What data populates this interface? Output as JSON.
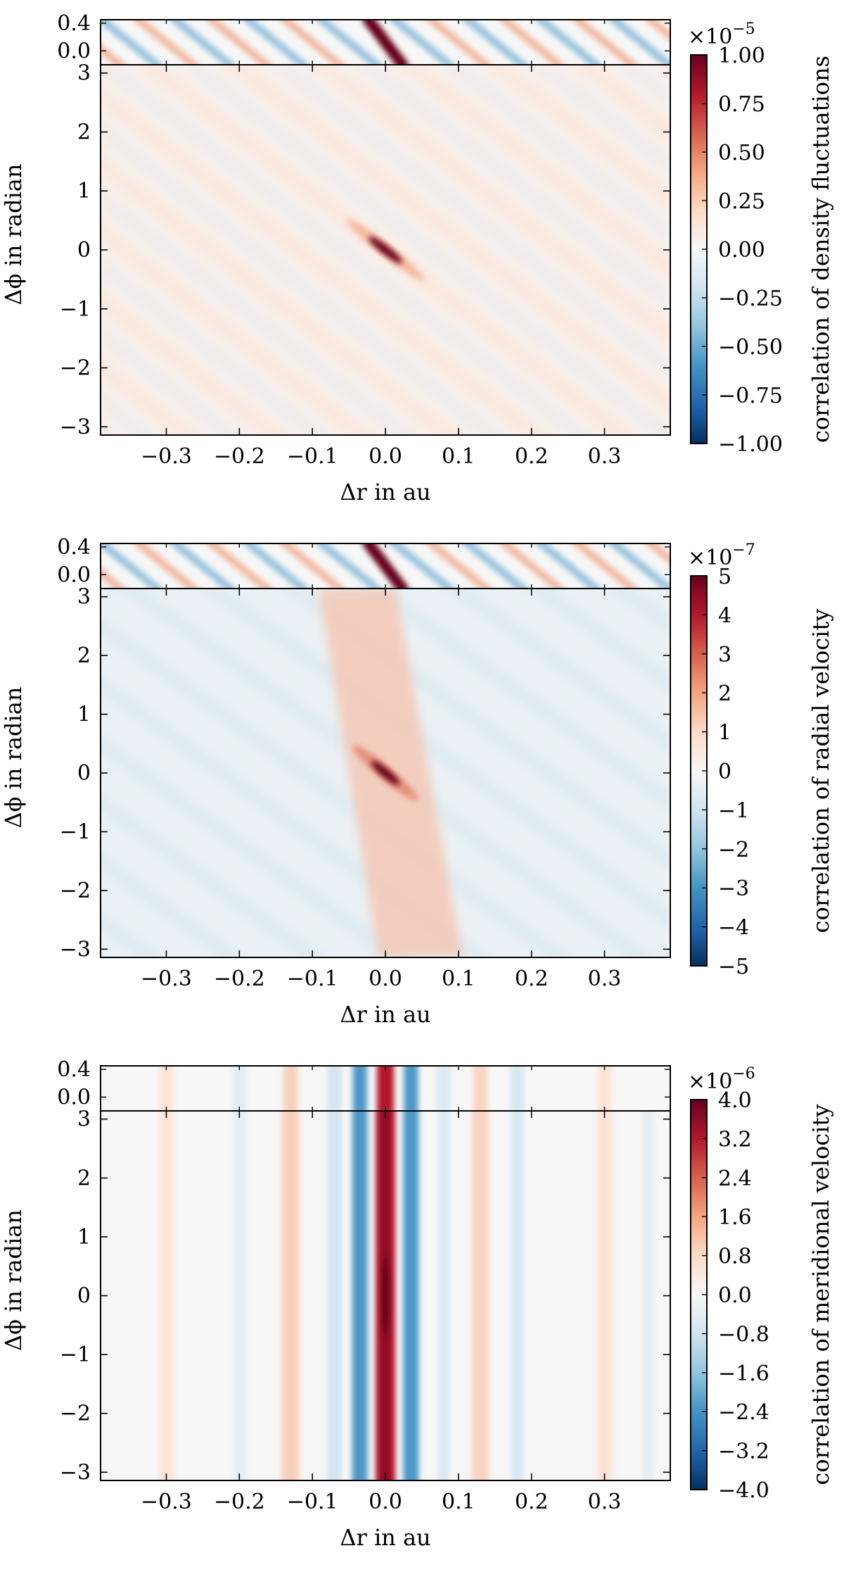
{
  "chart_data": [
    {
      "type": "heatmap",
      "panel": "density",
      "xlabel": "Δr in au",
      "ylabel": "Δϕ in radian",
      "xlim": [
        -0.39,
        0.39
      ],
      "ylim": [
        -3.14,
        3.14
      ],
      "inset_ylim": [
        -0.2,
        0.45
      ],
      "xticks": [
        "−0.3",
        "−0.2",
        "−0.1",
        "0.0",
        "0.1",
        "0.2",
        "0.3"
      ],
      "xtick_values": [
        -0.3,
        -0.2,
        -0.1,
        0.0,
        0.1,
        0.2,
        0.3
      ],
      "yticks": [
        "−3",
        "−2",
        "−1",
        "0",
        "1",
        "2",
        "3"
      ],
      "ytick_values": [
        -3,
        -2,
        -1,
        0,
        1,
        2,
        3
      ],
      "inset_yticks": [
        "0.4",
        "0.0"
      ],
      "inset_ytick_values": [
        0.4,
        0.0
      ],
      "colorbar": {
        "label": "correlation of density fluctuations",
        "multiplier_base": "×10",
        "multiplier_exp": "−5",
        "vmin": -1.0,
        "vmax": 1.0,
        "tick_values": [
          -1.0,
          -0.75,
          -0.5,
          -0.25,
          0.0,
          0.25,
          0.5,
          0.75,
          1.0
        ],
        "tick_labels": [
          "−1.00",
          "−0.75",
          "−0.50",
          "−0.25",
          "0.00",
          "0.25",
          "0.50",
          "0.75",
          "1.00"
        ]
      }
    },
    {
      "type": "heatmap",
      "panel": "radial",
      "xlabel": "Δr in au",
      "ylabel": "Δϕ in radian",
      "xlim": [
        -0.39,
        0.39
      ],
      "ylim": [
        -3.14,
        3.14
      ],
      "inset_ylim": [
        -0.2,
        0.45
      ],
      "xticks": [
        "−0.3",
        "−0.2",
        "−0.1",
        "0.0",
        "0.1",
        "0.2",
        "0.3"
      ],
      "xtick_values": [
        -0.3,
        -0.2,
        -0.1,
        0.0,
        0.1,
        0.2,
        0.3
      ],
      "yticks": [
        "−3",
        "−2",
        "−1",
        "0",
        "1",
        "2",
        "3"
      ],
      "ytick_values": [
        -3,
        -2,
        -1,
        0,
        1,
        2,
        3
      ],
      "inset_yticks": [
        "0.4",
        "0.0"
      ],
      "inset_ytick_values": [
        0.4,
        0.0
      ],
      "colorbar": {
        "label": "correlation of radial velocity",
        "multiplier_base": "×10",
        "multiplier_exp": "−7",
        "vmin": -5,
        "vmax": 5,
        "tick_values": [
          -5,
          -4,
          -3,
          -2,
          -1,
          0,
          1,
          2,
          3,
          4,
          5
        ],
        "tick_labels": [
          "−5",
          "−4",
          "−3",
          "−2",
          "−1",
          "0",
          "1",
          "2",
          "3",
          "4",
          "5"
        ]
      }
    },
    {
      "type": "heatmap",
      "panel": "meridional",
      "xlabel": "Δr in au",
      "ylabel": "Δϕ in radian",
      "xlim": [
        -0.39,
        0.39
      ],
      "ylim": [
        -3.14,
        3.14
      ],
      "inset_ylim": [
        -0.2,
        0.45
      ],
      "xticks": [
        "−0.3",
        "−0.2",
        "−0.1",
        "0.0",
        "0.1",
        "0.2",
        "0.3"
      ],
      "xtick_values": [
        -0.3,
        -0.2,
        -0.1,
        0.0,
        0.1,
        0.2,
        0.3
      ],
      "yticks": [
        "−3",
        "−2",
        "−1",
        "0",
        "1",
        "2",
        "3"
      ],
      "ytick_values": [
        -3,
        -2,
        -1,
        0,
        1,
        2,
        3
      ],
      "inset_yticks": [
        "0.4",
        "0.0"
      ],
      "inset_ytick_values": [
        0.4,
        0.0
      ],
      "colorbar": {
        "label": "correlation of meridional velocity",
        "multiplier_base": "×10",
        "multiplier_exp": "−6",
        "vmin": -4.0,
        "vmax": 4.0,
        "tick_values": [
          -4.0,
          -3.2,
          -2.4,
          -1.6,
          -0.8,
          0.0,
          0.8,
          1.6,
          2.4,
          3.2,
          4.0
        ],
        "tick_labels": [
          "−4.0",
          "−3.2",
          "−2.4",
          "−1.6",
          "−0.8",
          "0.0",
          "0.8",
          "1.6",
          "2.4",
          "3.2",
          "4.0"
        ]
      }
    }
  ],
  "colors": {
    "strong_red": "#67001f",
    "red": "#b2182b",
    "light_red": "#f4a582",
    "white": "#f7f7f7",
    "light_blue": "#92c5de",
    "blue": "#2166ac",
    "strong_blue": "#053061"
  }
}
